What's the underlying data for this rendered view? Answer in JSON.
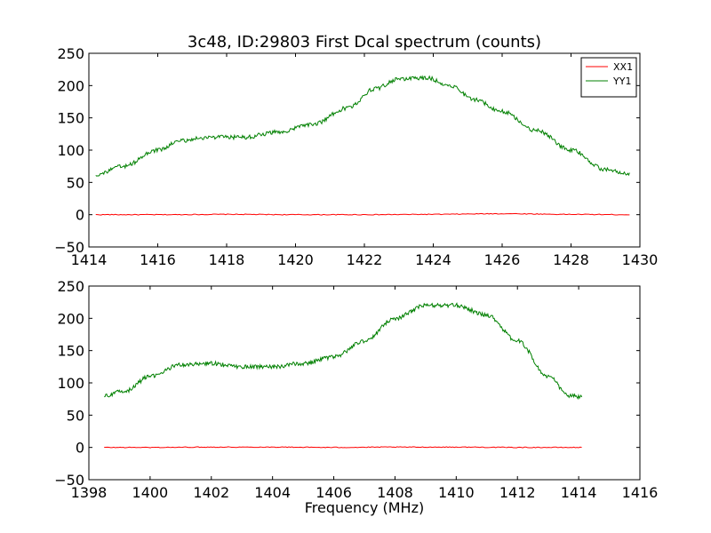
{
  "figure": {
    "title": "3c48, ID:29803 First Dcal spectrum (counts)",
    "xlabel": "Frequency (MHz)"
  },
  "chart_data": [
    {
      "type": "line",
      "title": "3c48, ID:29803 First Dcal spectrum (counts)",
      "xlabel": "",
      "ylabel": "",
      "xlim": [
        1414,
        1430
      ],
      "ylim": [
        -50,
        250
      ],
      "xticks": [
        1414,
        1416,
        1418,
        1420,
        1422,
        1424,
        1426,
        1428,
        1430
      ],
      "yticks": [
        -50,
        0,
        50,
        100,
        150,
        200,
        250
      ],
      "legend": "top-right",
      "grid": false,
      "series": [
        {
          "name": "XX1",
          "color": "#ff0000",
          "x": [
            1414.2,
            1416,
            1418,
            1420,
            1422,
            1424,
            1426,
            1428,
            1429.7
          ],
          "y": [
            0,
            0,
            0.5,
            0,
            0,
            0.5,
            1.5,
            0.5,
            0
          ]
        },
        {
          "name": "YY1",
          "color": "#008000",
          "x": [
            1414.2,
            1415,
            1416,
            1416.7,
            1417.5,
            1418.5,
            1419.5,
            1420.5,
            1421.5,
            1422.3,
            1423,
            1423.8,
            1424.5,
            1425.2,
            1426,
            1427,
            1428,
            1429,
            1429.7
          ],
          "y": [
            62,
            75,
            100,
            115,
            120,
            120,
            128,
            140,
            165,
            195,
            210,
            212,
            200,
            178,
            160,
            130,
            100,
            70,
            62
          ]
        }
      ]
    },
    {
      "type": "line",
      "title": "",
      "xlabel": "Frequency (MHz)",
      "ylabel": "",
      "xlim": [
        1398,
        1416
      ],
      "ylim": [
        -50,
        250
      ],
      "xticks": [
        1398,
        1400,
        1402,
        1404,
        1406,
        1408,
        1410,
        1412,
        1414,
        1416
      ],
      "yticks": [
        -50,
        0,
        50,
        100,
        150,
        200,
        250
      ],
      "legend": "none",
      "grid": false,
      "series": [
        {
          "color": "#ff0000",
          "x": [
            1398.5,
            1400,
            1402,
            1404,
            1406,
            1408,
            1410,
            1412,
            1414.1
          ],
          "y": [
            0,
            0,
            0.5,
            0.5,
            0,
            0.5,
            0.5,
            0,
            0
          ]
        },
        {
          "color": "#008000",
          "x": [
            1398.5,
            1399.2,
            1400,
            1401,
            1402,
            1403,
            1404,
            1405,
            1406,
            1407,
            1408,
            1409,
            1410,
            1411,
            1412,
            1413,
            1413.7,
            1414.1
          ],
          "y": [
            80,
            88,
            110,
            128,
            130,
            125,
            125,
            130,
            140,
            165,
            200,
            220,
            220,
            205,
            165,
            110,
            80,
            78
          ]
        }
      ]
    }
  ]
}
